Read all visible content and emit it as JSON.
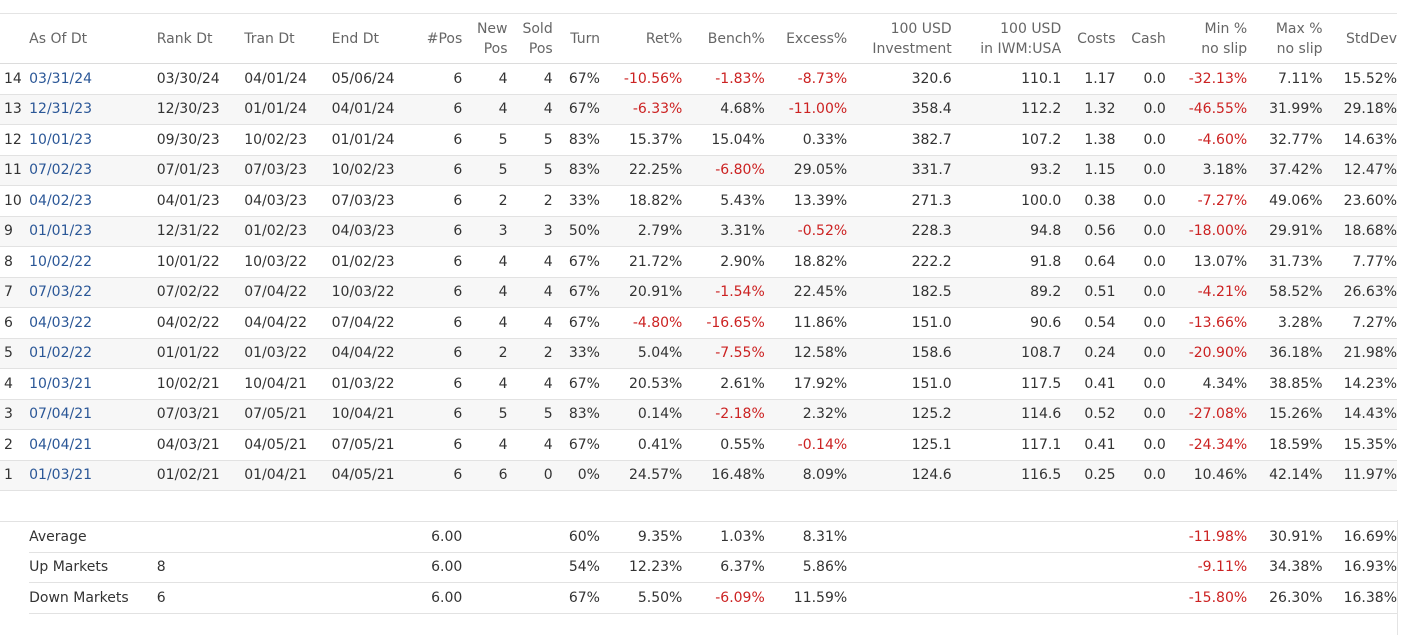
{
  "columns": {
    "idx": "",
    "as_of_dt": "As Of Dt",
    "rank_dt": "Rank Dt",
    "tran_dt": "Tran Dt",
    "end_dt": "End Dt",
    "pos": "#Pos",
    "new_pos_1": "New",
    "new_pos_2": "Pos",
    "sold_pos_1": "Sold",
    "sold_pos_2": "Pos",
    "turn": "Turn",
    "ret": "Ret%",
    "bench": "Bench%",
    "excess": "Excess%",
    "inv_1": "100 USD",
    "inv_2": "Investment",
    "iwm_1": "100 USD",
    "iwm_2": "in IWM:USA",
    "costs": "Costs",
    "cash": "Cash",
    "min_1": "Min %",
    "min_2": "no slip",
    "max_1": "Max %",
    "max_2": "no slip",
    "stddev": "StdDev"
  },
  "rows": [
    {
      "idx": "14",
      "as_of": "03/31/24",
      "rank": "03/30/24",
      "tran": "04/01/24",
      "end": "05/06/24",
      "pos": "6",
      "new": "4",
      "sold": "4",
      "turn": "67%",
      "ret": "-10.56%",
      "bench": "-1.83%",
      "excess": "-8.73%",
      "inv": "320.6",
      "iwm": "110.1",
      "costs": "1.17",
      "cash": "0.0",
      "min": "-32.13%",
      "max": "7.11%",
      "std": "15.52%"
    },
    {
      "idx": "13",
      "as_of": "12/31/23",
      "rank": "12/30/23",
      "tran": "01/01/24",
      "end": "04/01/24",
      "pos": "6",
      "new": "4",
      "sold": "4",
      "turn": "67%",
      "ret": "-6.33%",
      "bench": "4.68%",
      "excess": "-11.00%",
      "inv": "358.4",
      "iwm": "112.2",
      "costs": "1.32",
      "cash": "0.0",
      "min": "-46.55%",
      "max": "31.99%",
      "std": "29.18%"
    },
    {
      "idx": "12",
      "as_of": "10/01/23",
      "rank": "09/30/23",
      "tran": "10/02/23",
      "end": "01/01/24",
      "pos": "6",
      "new": "5",
      "sold": "5",
      "turn": "83%",
      "ret": "15.37%",
      "bench": "15.04%",
      "excess": "0.33%",
      "inv": "382.7",
      "iwm": "107.2",
      "costs": "1.38",
      "cash": "0.0",
      "min": "-4.60%",
      "max": "32.77%",
      "std": "14.63%"
    },
    {
      "idx": "11",
      "as_of": "07/02/23",
      "rank": "07/01/23",
      "tran": "07/03/23",
      "end": "10/02/23",
      "pos": "6",
      "new": "5",
      "sold": "5",
      "turn": "83%",
      "ret": "22.25%",
      "bench": "-6.80%",
      "excess": "29.05%",
      "inv": "331.7",
      "iwm": "93.2",
      "costs": "1.15",
      "cash": "0.0",
      "min": "3.18%",
      "max": "37.42%",
      "std": "12.47%"
    },
    {
      "idx": "10",
      "as_of": "04/02/23",
      "rank": "04/01/23",
      "tran": "04/03/23",
      "end": "07/03/23",
      "pos": "6",
      "new": "2",
      "sold": "2",
      "turn": "33%",
      "ret": "18.82%",
      "bench": "5.43%",
      "excess": "13.39%",
      "inv": "271.3",
      "iwm": "100.0",
      "costs": "0.38",
      "cash": "0.0",
      "min": "-7.27%",
      "max": "49.06%",
      "std": "23.60%"
    },
    {
      "idx": "9",
      "as_of": "01/01/23",
      "rank": "12/31/22",
      "tran": "01/02/23",
      "end": "04/03/23",
      "pos": "6",
      "new": "3",
      "sold": "3",
      "turn": "50%",
      "ret": "2.79%",
      "bench": "3.31%",
      "excess": "-0.52%",
      "inv": "228.3",
      "iwm": "94.8",
      "costs": "0.56",
      "cash": "0.0",
      "min": "-18.00%",
      "max": "29.91%",
      "std": "18.68%"
    },
    {
      "idx": "8",
      "as_of": "10/02/22",
      "rank": "10/01/22",
      "tran": "10/03/22",
      "end": "01/02/23",
      "pos": "6",
      "new": "4",
      "sold": "4",
      "turn": "67%",
      "ret": "21.72%",
      "bench": "2.90%",
      "excess": "18.82%",
      "inv": "222.2",
      "iwm": "91.8",
      "costs": "0.64",
      "cash": "0.0",
      "min": "13.07%",
      "max": "31.73%",
      "std": "7.77%"
    },
    {
      "idx": "7",
      "as_of": "07/03/22",
      "rank": "07/02/22",
      "tran": "07/04/22",
      "end": "10/03/22",
      "pos": "6",
      "new": "4",
      "sold": "4",
      "turn": "67%",
      "ret": "20.91%",
      "bench": "-1.54%",
      "excess": "22.45%",
      "inv": "182.5",
      "iwm": "89.2",
      "costs": "0.51",
      "cash": "0.0",
      "min": "-4.21%",
      "max": "58.52%",
      "std": "26.63%"
    },
    {
      "idx": "6",
      "as_of": "04/03/22",
      "rank": "04/02/22",
      "tran": "04/04/22",
      "end": "07/04/22",
      "pos": "6",
      "new": "4",
      "sold": "4",
      "turn": "67%",
      "ret": "-4.80%",
      "bench": "-16.65%",
      "excess": "11.86%",
      "inv": "151.0",
      "iwm": "90.6",
      "costs": "0.54",
      "cash": "0.0",
      "min": "-13.66%",
      "max": "3.28%",
      "std": "7.27%"
    },
    {
      "idx": "5",
      "as_of": "01/02/22",
      "rank": "01/01/22",
      "tran": "01/03/22",
      "end": "04/04/22",
      "pos": "6",
      "new": "2",
      "sold": "2",
      "turn": "33%",
      "ret": "5.04%",
      "bench": "-7.55%",
      "excess": "12.58%",
      "inv": "158.6",
      "iwm": "108.7",
      "costs": "0.24",
      "cash": "0.0",
      "min": "-20.90%",
      "max": "36.18%",
      "std": "21.98%"
    },
    {
      "idx": "4",
      "as_of": "10/03/21",
      "rank": "10/02/21",
      "tran": "10/04/21",
      "end": "01/03/22",
      "pos": "6",
      "new": "4",
      "sold": "4",
      "turn": "67%",
      "ret": "20.53%",
      "bench": "2.61%",
      "excess": "17.92%",
      "inv": "151.0",
      "iwm": "117.5",
      "costs": "0.41",
      "cash": "0.0",
      "min": "4.34%",
      "max": "38.85%",
      "std": "14.23%"
    },
    {
      "idx": "3",
      "as_of": "07/04/21",
      "rank": "07/03/21",
      "tran": "07/05/21",
      "end": "10/04/21",
      "pos": "6",
      "new": "5",
      "sold": "5",
      "turn": "83%",
      "ret": "0.14%",
      "bench": "-2.18%",
      "excess": "2.32%",
      "inv": "125.2",
      "iwm": "114.6",
      "costs": "0.52",
      "cash": "0.0",
      "min": "-27.08%",
      "max": "15.26%",
      "std": "14.43%"
    },
    {
      "idx": "2",
      "as_of": "04/04/21",
      "rank": "04/03/21",
      "tran": "04/05/21",
      "end": "07/05/21",
      "pos": "6",
      "new": "4",
      "sold": "4",
      "turn": "67%",
      "ret": "0.41%",
      "bench": "0.55%",
      "excess": "-0.14%",
      "inv": "125.1",
      "iwm": "117.1",
      "costs": "0.41",
      "cash": "0.0",
      "min": "-24.34%",
      "max": "18.59%",
      "std": "15.35%"
    },
    {
      "idx": "1",
      "as_of": "01/03/21",
      "rank": "01/02/21",
      "tran": "01/04/21",
      "end": "04/05/21",
      "pos": "6",
      "new": "6",
      "sold": "0",
      "turn": "0%",
      "ret": "24.57%",
      "bench": "16.48%",
      "excess": "8.09%",
      "inv": "124.6",
      "iwm": "116.5",
      "costs": "0.25",
      "cash": "0.0",
      "min": "10.46%",
      "max": "42.14%",
      "std": "11.97%"
    }
  ],
  "summary": [
    {
      "label": "Average",
      "count": "",
      "pos": "6.00",
      "turn": "60%",
      "ret": "9.35%",
      "bench": "1.03%",
      "excess": "8.31%",
      "min": "-11.98%",
      "max": "30.91%",
      "std": "16.69%"
    },
    {
      "label": "Up Markets",
      "count": "8",
      "pos": "6.00",
      "turn": "54%",
      "ret": "12.23%",
      "bench": "6.37%",
      "excess": "5.86%",
      "min": "-9.11%",
      "max": "34.38%",
      "std": "16.93%"
    },
    {
      "label": "Down Markets",
      "count": "6",
      "pos": "6.00",
      "turn": "67%",
      "ret": "5.50%",
      "bench": "-6.09%",
      "excess": "11.59%",
      "min": "-15.80%",
      "max": "26.30%",
      "std": "16.38%"
    }
  ],
  "colors": {
    "negative": "#cc2222",
    "link": "#2b5797",
    "header_text": "#666666",
    "text": "#333333"
  }
}
